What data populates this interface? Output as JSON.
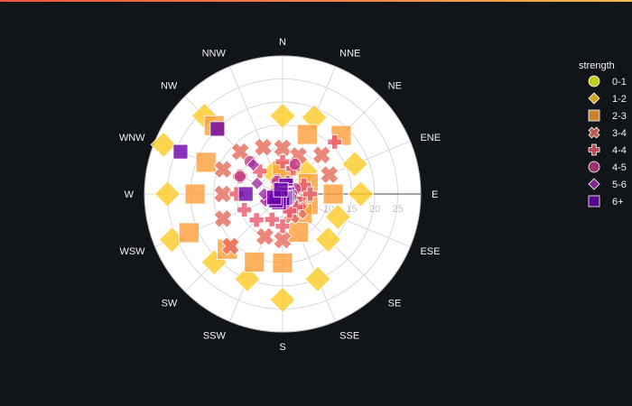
{
  "chart_data": {
    "type": "scatter",
    "subtype": "polar",
    "theme": "dark",
    "angular_axis": {
      "direction": "clockwise",
      "rotation": "north",
      "labels": [
        "N",
        "NNE",
        "NE",
        "ENE",
        "E",
        "ESE",
        "SE",
        "SSE",
        "S",
        "SSW",
        "SW",
        "WSW",
        "W",
        "WNW",
        "NW",
        "NNW"
      ]
    },
    "radial_axis": {
      "range": [
        0,
        30
      ],
      "tickvals": [
        5,
        10,
        15,
        20,
        25
      ],
      "ticklabels": [
        "5",
        "10",
        "15",
        "20",
        "25"
      ]
    },
    "grid": true,
    "legend": {
      "title": "strength",
      "placement": "right"
    },
    "series": [
      {
        "name": "0-1",
        "symbol": "circle",
        "color": "#f0f921",
        "size": 8,
        "points": [
          {
            "r": 0.5,
            "theta": "N"
          },
          {
            "r": 0.6,
            "theta": "NNE"
          },
          {
            "r": 0.5,
            "theta": "NE"
          },
          {
            "r": 0.4,
            "theta": "ENE"
          },
          {
            "r": 0.4,
            "theta": "E"
          },
          {
            "r": 0.3,
            "theta": "ESE"
          },
          {
            "r": 0.4,
            "theta": "SE"
          },
          {
            "r": 0.4,
            "theta": "SSE"
          },
          {
            "r": 0.6,
            "theta": "S"
          },
          {
            "r": 0.5,
            "theta": "SSW"
          },
          {
            "r": 0.5,
            "theta": "SW"
          },
          {
            "r": 0.6,
            "theta": "WSW"
          },
          {
            "r": 0.6,
            "theta": "W"
          },
          {
            "r": 0.5,
            "theta": "WNW"
          },
          {
            "r": 0.5,
            "theta": "NW"
          },
          {
            "r": 0.5,
            "theta": "NNW"
          }
        ]
      },
      {
        "name": "1-2",
        "symbol": "diamond",
        "color": "#fdca26",
        "size": 28,
        "points": [
          {
            "r": 17,
            "theta": "N"
          },
          {
            "r": 18,
            "theta": "NNE"
          },
          {
            "r": 7,
            "theta": "NE"
          },
          {
            "r": 17,
            "theta": "ENE"
          },
          {
            "r": 17,
            "theta": "E"
          },
          {
            "r": 13,
            "theta": "ESE"
          },
          {
            "r": 14,
            "theta": "SE"
          },
          {
            "r": 20,
            "theta": "SSE"
          },
          {
            "r": 23,
            "theta": "S"
          },
          {
            "r": 20,
            "theta": "SSW"
          },
          {
            "r": 21,
            "theta": "SW"
          },
          {
            "r": 26,
            "theta": "WSW"
          },
          {
            "r": 25,
            "theta": "W"
          },
          {
            "r": 28,
            "theta": "WNW"
          },
          {
            "r": 24,
            "theta": "NW"
          },
          {
            "r": 5,
            "theta": "NNW"
          }
        ]
      },
      {
        "name": "2-3",
        "symbol": "square",
        "color": "#fb9f3a",
        "size": 22,
        "points": [
          {
            "r": 5,
            "theta": "N"
          },
          {
            "r": 14,
            "theta": "NNE"
          },
          {
            "r": 18,
            "theta": "NE"
          },
          {
            "r": 6,
            "theta": "ENE"
          },
          {
            "r": 11,
            "theta": "E"
          },
          {
            "r": 6,
            "theta": "ESE"
          },
          {
            "r": 6,
            "theta": "SE"
          },
          {
            "r": 9,
            "theta": "SSE"
          },
          {
            "r": 15,
            "theta": "S"
          },
          {
            "r": 16,
            "theta": "SSW"
          },
          {
            "r": 17,
            "theta": "SW"
          },
          {
            "r": 22,
            "theta": "WSW"
          },
          {
            "r": 19,
            "theta": "W"
          },
          {
            "r": 18,
            "theta": "WNW"
          },
          {
            "r": 21,
            "theta": "NW"
          },
          {
            "r": 1,
            "theta": "NNW"
          }
        ]
      },
      {
        "name": "3-4",
        "symbol": "x",
        "color": "#e66c5c",
        "size": 20,
        "points": [
          {
            "r": 10,
            "theta": "N"
          },
          {
            "r": 9,
            "theta": "NNE"
          },
          {
            "r": 12,
            "theta": "NE"
          },
          {
            "r": 11,
            "theta": "ENE"
          },
          {
            "r": 2,
            "theta": "E"
          },
          {
            "r": 4,
            "theta": "ESE"
          },
          {
            "r": 5,
            "theta": "SE"
          },
          {
            "r": 5,
            "theta": "SSE"
          },
          {
            "r": 10,
            "theta": "S"
          },
          {
            "r": 10,
            "theta": "SSW"
          },
          {
            "r": 16,
            "theta": "SW"
          },
          {
            "r": 14,
            "theta": "WSW"
          },
          {
            "r": 13,
            "theta": "W"
          },
          {
            "r": 14,
            "theta": "WNW"
          },
          {
            "r": 13,
            "theta": "NW"
          },
          {
            "r": 11,
            "theta": "NNW"
          }
        ]
      },
      {
        "name": "4-4",
        "symbol": "cross",
        "color": "#e8586c",
        "size": 16,
        "points": [
          {
            "r": 7,
            "theta": "N"
          },
          {
            "r": 6,
            "theta": "NNE"
          },
          {
            "r": 16,
            "theta": "NE"
          },
          {
            "r": 5,
            "theta": "ENE"
          },
          {
            "r": 6,
            "theta": "E"
          },
          {
            "r": 3,
            "theta": "ESE"
          },
          {
            "r": 4,
            "theta": "SE"
          },
          {
            "r": 4,
            "theta": "SSE"
          },
          {
            "r": 7,
            "theta": "S"
          },
          {
            "r": 6,
            "theta": "SSW"
          },
          {
            "r": 8,
            "theta": "SW"
          },
          {
            "r": 9,
            "theta": "WSW"
          },
          {
            "r": 10,
            "theta": "W"
          },
          {
            "r": 10,
            "theta": "WNW"
          },
          {
            "r": 7,
            "theta": "NW"
          },
          {
            "r": 3,
            "theta": "NNW"
          }
        ]
      },
      {
        "name": "4-5",
        "symbol": "circle",
        "color": "#bf3984",
        "size": 13,
        "points": [
          {
            "r": 2,
            "theta": "N"
          },
          {
            "r": 7,
            "theta": "NNE"
          },
          {
            "r": 2,
            "theta": "NE"
          },
          {
            "r": 3,
            "theta": "ENE"
          },
          {
            "r": 2,
            "theta": "E"
          },
          {
            "r": 2,
            "theta": "ESE"
          },
          {
            "r": 2,
            "theta": "SE"
          },
          {
            "r": 2,
            "theta": "SSE"
          },
          {
            "r": 1,
            "theta": "S"
          },
          {
            "r": 2,
            "theta": "SSW"
          },
          {
            "r": 2,
            "theta": "SW"
          },
          {
            "r": 3,
            "theta": "WSW"
          },
          {
            "r": 2,
            "theta": "W"
          },
          {
            "r": 10,
            "theta": "WNW"
          },
          {
            "r": 10,
            "theta": "NW"
          },
          {
            "r": 3,
            "theta": "NNW"
          }
        ]
      },
      {
        "name": "5-6",
        "symbol": "diamond",
        "color": "#9f2aa3",
        "size": 14,
        "points": [
          {
            "r": 1,
            "theta": "N"
          },
          {
            "r": 3,
            "theta": "NNE"
          },
          {
            "r": 1,
            "theta": "NE"
          },
          {
            "r": 1,
            "theta": "ENE"
          },
          {
            "r": 1,
            "theta": "E"
          },
          {
            "r": 1,
            "theta": "ESE"
          },
          {
            "r": 1,
            "theta": "SE"
          },
          {
            "r": 1,
            "theta": "SSE"
          },
          {
            "r": 1,
            "theta": "S"
          },
          {
            "r": 2,
            "theta": "SSW"
          },
          {
            "r": 3,
            "theta": "SW"
          },
          {
            "r": 4,
            "theta": "WSW"
          },
          {
            "r": 4,
            "theta": "W"
          },
          {
            "r": 6,
            "theta": "WNW"
          },
          {
            "r": 9,
            "theta": "NW"
          },
          {
            "r": 1,
            "theta": "NNW"
          }
        ]
      },
      {
        "name": "6+",
        "symbol": "square",
        "color": "#6a00a8",
        "size": 16,
        "points": [
          {
            "r": 1,
            "theta": "N"
          },
          {
            "r": 2,
            "theta": "NNE"
          },
          {
            "r": 1,
            "theta": "NE"
          },
          {
            "r": 0.5,
            "theta": "ENE"
          },
          {
            "r": 1,
            "theta": "E"
          },
          {
            "r": 0.5,
            "theta": "ESE"
          },
          {
            "r": 1,
            "theta": "SE"
          },
          {
            "r": 1,
            "theta": "SSE"
          },
          {
            "r": 1,
            "theta": "S"
          },
          {
            "r": 2,
            "theta": "SSW"
          },
          {
            "r": 2,
            "theta": "SW"
          },
          {
            "r": 2,
            "theta": "WSW"
          },
          {
            "r": 8,
            "theta": "W"
          },
          {
            "r": 24,
            "theta": "WNW"
          },
          {
            "r": 20,
            "theta": "NW"
          },
          {
            "r": 1,
            "theta": "NNW"
          }
        ]
      }
    ]
  },
  "colors": {
    "background": "#111419",
    "polar_bg": "#ffffff",
    "grid": "#d9d9d9",
    "text": "#f2f2f2"
  }
}
